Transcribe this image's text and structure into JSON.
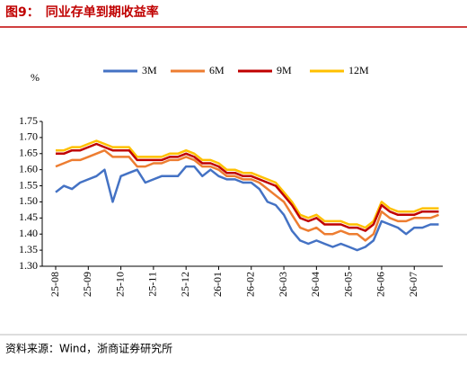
{
  "chart_data": {
    "type": "line",
    "title": "图9：　同业存单到期收益率",
    "source": "资料来源：Wind，浙商证券研究所",
    "y_unit": "%",
    "categories": [
      "25-08",
      null,
      null,
      null,
      "25-09",
      null,
      null,
      null,
      "25-10",
      null,
      null,
      null,
      "25-11",
      null,
      null,
      null,
      "25-12",
      null,
      null,
      null,
      "26-01",
      null,
      null,
      null,
      "26-02",
      null,
      null,
      null,
      "26-03",
      null,
      null,
      null,
      "26-04",
      null,
      null,
      null,
      "26-05",
      null,
      null,
      null,
      "26-06",
      null,
      null,
      null,
      "26-07",
      null,
      null,
      null
    ],
    "series": [
      {
        "name": "3M",
        "color": "#4472c4",
        "values": [
          1.53,
          1.55,
          1.54,
          1.56,
          1.57,
          1.58,
          1.6,
          1.5,
          1.58,
          1.59,
          1.6,
          1.56,
          1.57,
          1.58,
          1.58,
          1.58,
          1.61,
          1.61,
          1.58,
          1.6,
          1.58,
          1.57,
          1.57,
          1.56,
          1.56,
          1.54,
          1.5,
          1.49,
          1.46,
          1.41,
          1.38,
          1.37,
          1.38,
          1.37,
          1.36,
          1.37,
          1.36,
          1.35,
          1.36,
          1.38,
          1.44,
          1.43,
          1.42,
          1.4,
          1.42,
          1.42,
          1.43,
          1.43
        ]
      },
      {
        "name": "6M",
        "color": "#ed7d31",
        "values": [
          1.61,
          1.62,
          1.63,
          1.63,
          1.64,
          1.65,
          1.66,
          1.64,
          1.64,
          1.64,
          1.61,
          1.61,
          1.62,
          1.62,
          1.63,
          1.63,
          1.64,
          1.63,
          1.61,
          1.61,
          1.6,
          1.58,
          1.58,
          1.57,
          1.57,
          1.56,
          1.54,
          1.52,
          1.5,
          1.46,
          1.42,
          1.41,
          1.42,
          1.4,
          1.4,
          1.41,
          1.4,
          1.4,
          1.38,
          1.4,
          1.47,
          1.45,
          1.44,
          1.44,
          1.45,
          1.45,
          1.45,
          1.46
        ]
      },
      {
        "name": "9M",
        "color": "#c00000",
        "values": [
          1.65,
          1.65,
          1.66,
          1.66,
          1.67,
          1.68,
          1.67,
          1.66,
          1.66,
          1.66,
          1.63,
          1.63,
          1.63,
          1.63,
          1.64,
          1.64,
          1.65,
          1.64,
          1.62,
          1.62,
          1.61,
          1.59,
          1.59,
          1.58,
          1.58,
          1.57,
          1.56,
          1.55,
          1.52,
          1.49,
          1.45,
          1.44,
          1.45,
          1.43,
          1.43,
          1.43,
          1.42,
          1.42,
          1.41,
          1.43,
          1.49,
          1.47,
          1.46,
          1.46,
          1.46,
          1.47,
          1.47,
          1.47
        ]
      },
      {
        "name": "12M",
        "color": "#ffc000",
        "values": [
          1.66,
          1.66,
          1.67,
          1.67,
          1.68,
          1.69,
          1.68,
          1.67,
          1.67,
          1.67,
          1.64,
          1.64,
          1.64,
          1.64,
          1.65,
          1.65,
          1.66,
          1.65,
          1.63,
          1.63,
          1.62,
          1.6,
          1.6,
          1.59,
          1.59,
          1.58,
          1.57,
          1.56,
          1.53,
          1.5,
          1.46,
          1.45,
          1.46,
          1.44,
          1.44,
          1.44,
          1.43,
          1.43,
          1.42,
          1.44,
          1.5,
          1.48,
          1.47,
          1.47,
          1.47,
          1.48,
          1.48,
          1.48
        ]
      }
    ],
    "ylim": [
      1.3,
      1.75
    ],
    "yticks": [
      {
        "value": 1.3,
        "label": "1.30"
      },
      1.35,
      {
        "value": 1.4,
        "label": "1.40"
      },
      1.45,
      {
        "value": 1.5,
        "label": "1.50"
      },
      1.55,
      {
        "value": 1.6,
        "label": "1.60"
      },
      1.65,
      {
        "value": 1.7,
        "label": "1.70"
      },
      1.75
    ],
    "grid": false
  }
}
